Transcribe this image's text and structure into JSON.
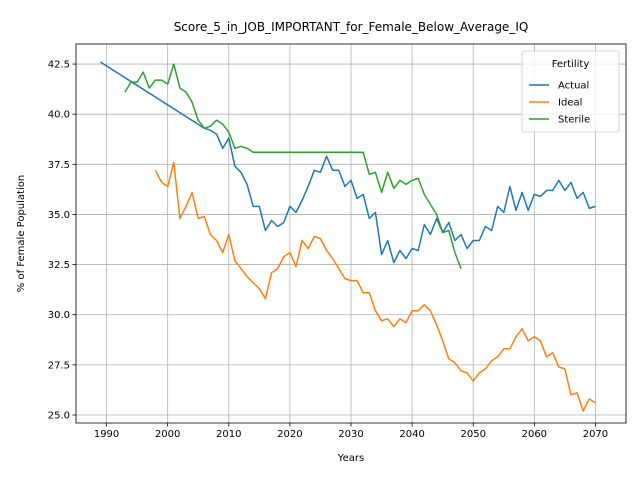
{
  "chart_data": {
    "type": "line",
    "title": "Score_5_in_JOB_IMPORTANT_for_Female_Below_Average_IQ",
    "xlabel": "Years",
    "ylabel": "% of Female Population",
    "xlim": [
      1985,
      2075
    ],
    "ylim": [
      24.6,
      43.5
    ],
    "xticks": [
      1990,
      2000,
      2010,
      2020,
      2030,
      2040,
      2050,
      2060,
      2070
    ],
    "yticks": [
      25.0,
      27.5,
      30.0,
      32.5,
      35.0,
      37.5,
      40.0,
      42.5
    ],
    "grid": true,
    "legend": {
      "title": "Fertility",
      "placement": "top-right"
    },
    "series": [
      {
        "name": "Actual",
        "color": "#1f77b4",
        "points": [
          [
            1989,
            42.6
          ],
          [
            2006,
            39.3
          ],
          [
            2007,
            39.2
          ],
          [
            2008,
            39.0
          ],
          [
            2009,
            38.3
          ],
          [
            2010,
            38.8
          ],
          [
            2011,
            37.4
          ],
          [
            2012,
            37.1
          ],
          [
            2013,
            36.5
          ],
          [
            2014,
            35.4
          ],
          [
            2015,
            35.4
          ],
          [
            2016,
            34.2
          ],
          [
            2017,
            34.7
          ],
          [
            2018,
            34.4
          ],
          [
            2019,
            34.6
          ],
          [
            2020,
            35.4
          ],
          [
            2021,
            35.1
          ],
          [
            2022,
            35.7
          ],
          [
            2023,
            36.4
          ],
          [
            2024,
            37.2
          ],
          [
            2025,
            37.1
          ],
          [
            2026,
            37.9
          ],
          [
            2027,
            37.2
          ],
          [
            2028,
            37.2
          ],
          [
            2029,
            36.4
          ],
          [
            2030,
            36.7
          ],
          [
            2031,
            35.8
          ],
          [
            2032,
            36.0
          ],
          [
            2033,
            34.8
          ],
          [
            2034,
            35.1
          ],
          [
            2035,
            33.0
          ],
          [
            2036,
            33.7
          ],
          [
            2037,
            32.6
          ],
          [
            2038,
            33.2
          ],
          [
            2039,
            32.8
          ],
          [
            2040,
            33.3
          ],
          [
            2041,
            33.2
          ],
          [
            2042,
            34.5
          ],
          [
            2043,
            34.0
          ],
          [
            2044,
            34.8
          ],
          [
            2045,
            34.1
          ],
          [
            2046,
            34.6
          ],
          [
            2047,
            33.7
          ],
          [
            2048,
            34.0
          ],
          [
            2049,
            33.3
          ],
          [
            2050,
            33.7
          ],
          [
            2051,
            33.7
          ],
          [
            2052,
            34.4
          ],
          [
            2053,
            34.2
          ],
          [
            2054,
            35.4
          ],
          [
            2055,
            35.1
          ],
          [
            2056,
            36.4
          ],
          [
            2057,
            35.2
          ],
          [
            2058,
            36.1
          ],
          [
            2059,
            35.2
          ],
          [
            2060,
            36.0
          ],
          [
            2061,
            35.9
          ],
          [
            2062,
            36.2
          ],
          [
            2063,
            36.2
          ],
          [
            2064,
            36.7
          ],
          [
            2065,
            36.2
          ],
          [
            2066,
            36.6
          ],
          [
            2067,
            35.8
          ],
          [
            2068,
            36.1
          ],
          [
            2069,
            35.3
          ],
          [
            2070,
            35.4
          ]
        ]
      },
      {
        "name": "Ideal",
        "color": "#ff7f0e",
        "points": [
          [
            1998,
            37.2
          ],
          [
            1999,
            36.6
          ],
          [
            2000,
            36.4
          ],
          [
            2001,
            37.6
          ],
          [
            2002,
            34.8
          ],
          [
            2003,
            35.4
          ],
          [
            2004,
            36.1
          ],
          [
            2005,
            34.8
          ],
          [
            2006,
            34.9
          ],
          [
            2007,
            34.0
          ],
          [
            2008,
            33.7
          ],
          [
            2009,
            33.1
          ],
          [
            2010,
            34.0
          ],
          [
            2011,
            32.7
          ],
          [
            2012,
            32.3
          ],
          [
            2013,
            31.9
          ],
          [
            2014,
            31.6
          ],
          [
            2015,
            31.3
          ],
          [
            2016,
            30.8
          ],
          [
            2017,
            32.1
          ],
          [
            2018,
            32.3
          ],
          [
            2019,
            32.9
          ],
          [
            2020,
            33.1
          ],
          [
            2021,
            32.4
          ],
          [
            2022,
            33.7
          ],
          [
            2023,
            33.3
          ],
          [
            2024,
            33.9
          ],
          [
            2025,
            33.8
          ],
          [
            2026,
            33.2
          ],
          [
            2027,
            32.8
          ],
          [
            2028,
            32.3
          ],
          [
            2029,
            31.8
          ],
          [
            2030,
            31.7
          ],
          [
            2031,
            31.7
          ],
          [
            2032,
            31.1
          ],
          [
            2033,
            31.1
          ],
          [
            2034,
            30.2
          ],
          [
            2035,
            29.7
          ],
          [
            2036,
            29.8
          ],
          [
            2037,
            29.4
          ],
          [
            2038,
            29.8
          ],
          [
            2039,
            29.6
          ],
          [
            2040,
            30.2
          ],
          [
            2041,
            30.2
          ],
          [
            2042,
            30.5
          ],
          [
            2043,
            30.2
          ],
          [
            2044,
            29.5
          ],
          [
            2045,
            28.7
          ],
          [
            2046,
            27.8
          ],
          [
            2047,
            27.6
          ],
          [
            2048,
            27.2
          ],
          [
            2049,
            27.1
          ],
          [
            2050,
            26.7
          ],
          [
            2051,
            27.1
          ],
          [
            2052,
            27.3
          ],
          [
            2053,
            27.7
          ],
          [
            2054,
            27.9
          ],
          [
            2055,
            28.3
          ],
          [
            2056,
            28.3
          ],
          [
            2057,
            28.9
          ],
          [
            2058,
            29.3
          ],
          [
            2059,
            28.7
          ],
          [
            2060,
            28.9
          ],
          [
            2061,
            28.7
          ],
          [
            2062,
            27.9
          ],
          [
            2063,
            28.1
          ],
          [
            2064,
            27.4
          ],
          [
            2065,
            27.3
          ],
          [
            2066,
            26.0
          ],
          [
            2067,
            26.1
          ],
          [
            2068,
            25.2
          ],
          [
            2069,
            25.8
          ],
          [
            2070,
            25.6
          ]
        ]
      },
      {
        "name": "Sterile",
        "color": "#2ca02c",
        "points": [
          [
            1993,
            41.1
          ],
          [
            1994,
            41.6
          ],
          [
            1995,
            41.6
          ],
          [
            1996,
            42.1
          ],
          [
            1997,
            41.3
          ],
          [
            1998,
            41.7
          ],
          [
            1999,
            41.7
          ],
          [
            2000,
            41.5
          ],
          [
            2001,
            42.5
          ],
          [
            2002,
            41.3
          ],
          [
            2003,
            41.1
          ],
          [
            2004,
            40.6
          ],
          [
            2005,
            39.7
          ],
          [
            2006,
            39.3
          ],
          [
            2007,
            39.4
          ],
          [
            2008,
            39.7
          ],
          [
            2009,
            39.5
          ],
          [
            2010,
            39.1
          ],
          [
            2011,
            38.3
          ],
          [
            2012,
            38.4
          ],
          [
            2013,
            38.3
          ],
          [
            2014,
            38.1
          ],
          [
            2032,
            38.1
          ],
          [
            2033,
            37.0
          ],
          [
            2034,
            37.1
          ],
          [
            2035,
            36.1
          ],
          [
            2036,
            37.1
          ],
          [
            2037,
            36.3
          ],
          [
            2038,
            36.7
          ],
          [
            2039,
            36.5
          ],
          [
            2040,
            36.7
          ],
          [
            2041,
            36.8
          ],
          [
            2042,
            36.0
          ],
          [
            2043,
            35.5
          ],
          [
            2044,
            35.0
          ],
          [
            2045,
            34.1
          ],
          [
            2046,
            34.2
          ],
          [
            2047,
            33.1
          ],
          [
            2048,
            32.3
          ]
        ]
      }
    ]
  }
}
